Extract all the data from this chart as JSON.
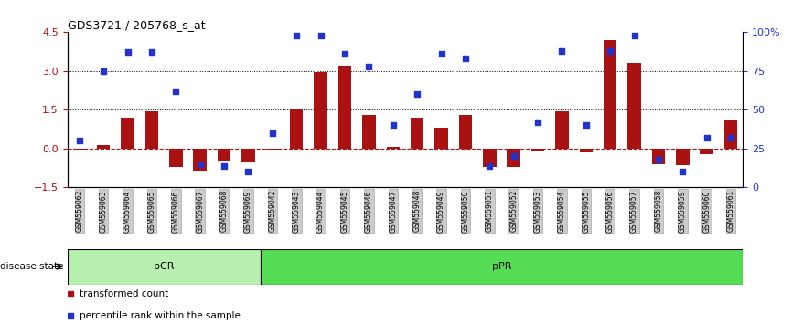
{
  "title": "GDS3721 / 205768_s_at",
  "samples": [
    "GSM559062",
    "GSM559063",
    "GSM559064",
    "GSM559065",
    "GSM559066",
    "GSM559067",
    "GSM559068",
    "GSM559069",
    "GSM559042",
    "GSM559043",
    "GSM559044",
    "GSM559045",
    "GSM559046",
    "GSM559047",
    "GSM559048",
    "GSM559049",
    "GSM559050",
    "GSM559051",
    "GSM559052",
    "GSM559053",
    "GSM559054",
    "GSM559055",
    "GSM559056",
    "GSM559057",
    "GSM559058",
    "GSM559059",
    "GSM559060",
    "GSM559061"
  ],
  "transformed_count": [
    -0.05,
    0.12,
    1.2,
    1.45,
    -0.7,
    -0.85,
    -0.48,
    -0.52,
    -0.05,
    1.55,
    2.95,
    3.2,
    1.3,
    0.05,
    1.2,
    0.8,
    1.3,
    -0.72,
    -0.72,
    -0.1,
    1.45,
    -0.15,
    4.2,
    3.3,
    -0.62,
    -0.65,
    -0.2,
    1.1
  ],
  "percentile_rank": [
    30,
    75,
    87,
    87,
    62,
    15,
    14,
    10,
    35,
    98,
    98,
    86,
    78,
    40,
    60,
    86,
    83,
    14,
    20,
    42,
    88,
    40,
    88,
    98,
    18,
    10,
    32,
    32
  ],
  "pCR_count": 8,
  "pPR_count": 20,
  "bar_color": "#aa1111",
  "dot_color": "#2233cc",
  "ylim_left": [
    -1.5,
    4.5
  ],
  "ylim_right": [
    0,
    100
  ],
  "yticks_left": [
    -1.5,
    0.0,
    1.5,
    3.0,
    4.5
  ],
  "yticks_right": [
    0,
    25,
    50,
    75,
    100
  ],
  "right_tick_labels": [
    "0",
    "25",
    "50",
    "75",
    "100%"
  ],
  "disease_state_label": "disease state",
  "pCR_color": "#b8f0b0",
  "pPR_color": "#55dd55",
  "background_color": "#ffffff",
  "legend_bar_label": "transformed count",
  "legend_dot_label": "percentile rank within the sample"
}
